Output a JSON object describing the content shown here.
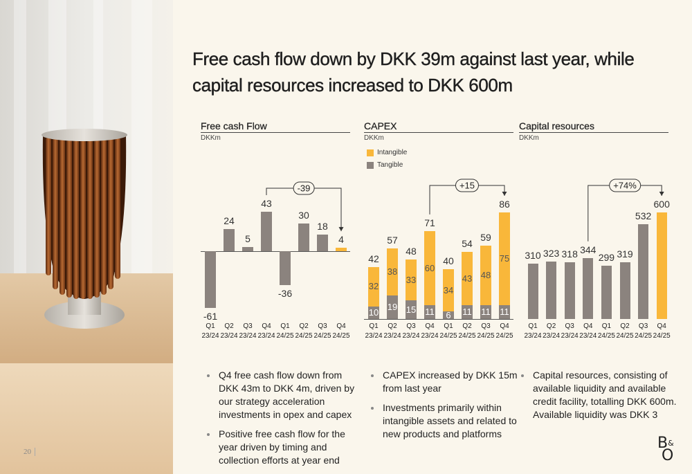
{
  "title": "Free cash flow down by DKK 39m against last year, while capital resources increased to DKK 600m",
  "page_number": "20",
  "logo": [
    "B",
    "&",
    "O"
  ],
  "chart_data": [
    {
      "type": "bar",
      "title": "Free cash Flow",
      "subtitle": "DKKm",
      "categories": [
        "Q1 23/24",
        "Q2 23/24",
        "Q3 23/24",
        "Q4 23/24",
        "Q1 24/25",
        "Q2 24/25",
        "Q3 24/25",
        "Q4 24/25"
      ],
      "values": [
        -61,
        24,
        5,
        43,
        -36,
        30,
        18,
        4
      ],
      "colors": [
        "#8b837e",
        "#8b837e",
        "#8b837e",
        "#8b837e",
        "#8b837e",
        "#8b837e",
        "#8b837e",
        "#f9b73a"
      ],
      "annotation": "-39",
      "notes": [
        "Q4 free cash flow down from DKK 43m to DKK 4m, driven by our strategy acceleration investments in opex and capex",
        "Positive free cash flow for the year driven by timing and collection efforts at year end"
      ]
    },
    {
      "type": "stacked_bar",
      "title": "CAPEX",
      "subtitle": "DKKm",
      "categories": [
        "Q1 23/24",
        "Q2 23/24",
        "Q3 23/24",
        "Q4 23/24",
        "Q1 24/25",
        "Q2 24/25",
        "Q3 24/25",
        "Q4 24/25"
      ],
      "series": [
        {
          "name": "Intangible",
          "color": "#f9b73a",
          "values": [
            32,
            38,
            33,
            60,
            34,
            43,
            48,
            75
          ]
        },
        {
          "name": "Tangible",
          "color": "#8b837e",
          "values": [
            10,
            19,
            15,
            11,
            6,
            11,
            11,
            11
          ]
        }
      ],
      "totals": [
        42,
        57,
        48,
        71,
        40,
        54,
        59,
        86
      ],
      "annotation": "+15",
      "notes": [
        "CAPEX increased by DKK 15m from last year",
        "Investments primarily within intangible assets and related to new products and platforms"
      ]
    },
    {
      "type": "bar",
      "title": "Capital resources",
      "subtitle": "DKKm",
      "categories": [
        "Q1 23/24",
        "Q2 23/24",
        "Q3 23/24",
        "Q4 23/24",
        "Q1 24/25",
        "Q2 24/25",
        "Q3 24/25",
        "Q4 24/25"
      ],
      "values": [
        310,
        323,
        318,
        344,
        299,
        319,
        532,
        600
      ],
      "colors": [
        "#8b837e",
        "#8b837e",
        "#8b837e",
        "#8b837e",
        "#8b837e",
        "#8b837e",
        "#8b837e",
        "#f9b73a"
      ],
      "annotation": "+74%",
      "notes": [
        "Capital resources, consisting of available liquidity and available credit facility, totalling DKK 600m. Available liquidity was DKK 3"
      ]
    }
  ]
}
